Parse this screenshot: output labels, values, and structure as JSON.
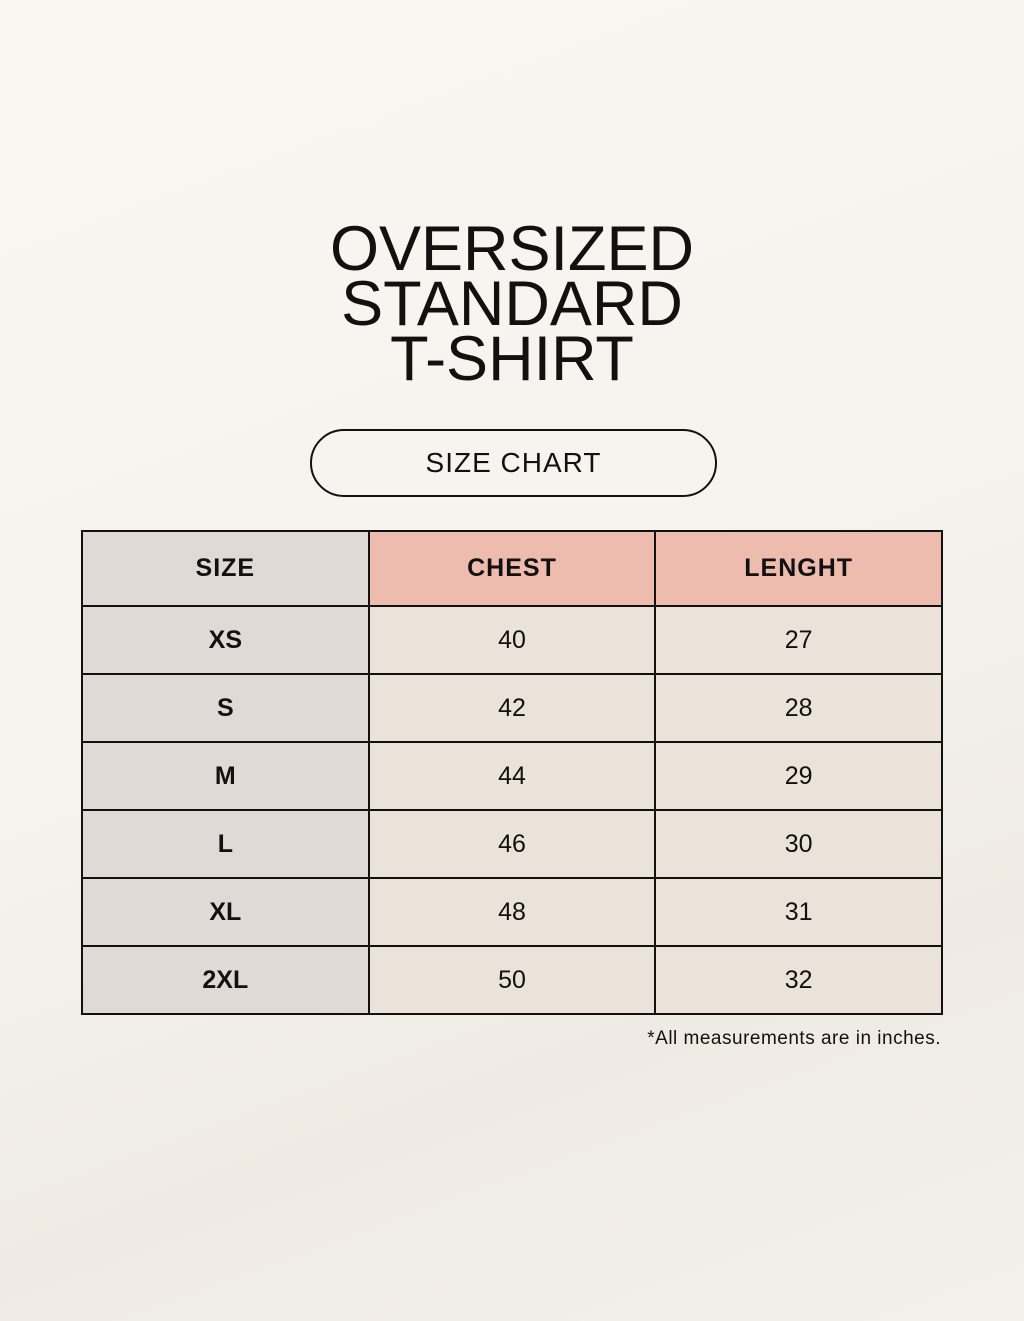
{
  "title": {
    "lines": [
      "OVERSIZED",
      "STANDARD",
      "T-SHIRT"
    ]
  },
  "badge": "SIZE CHART",
  "table": {
    "headers": [
      "SIZE",
      "CHEST",
      "LENGHT"
    ],
    "rows": [
      [
        "XS",
        "40",
        "27"
      ],
      [
        "S",
        "42",
        "28"
      ],
      [
        "M",
        "44",
        "29"
      ],
      [
        "L",
        "46",
        "30"
      ],
      [
        "XL",
        "48",
        "31"
      ],
      [
        "2XL",
        "50",
        "32"
      ]
    ]
  },
  "note": "*All measurements are in inches.",
  "colors": {
    "size_column": "#e0d9d5",
    "header_accent": "#eebcaf",
    "data_cells": "#ebe3d9"
  }
}
